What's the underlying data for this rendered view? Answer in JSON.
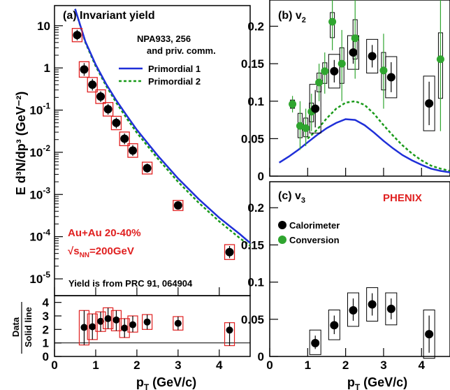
{
  "chart_data": [
    {
      "id": "yield",
      "type": "scatter",
      "title": "(a) Invariant yield",
      "ylabel": "E d³N/dp³ (GeV⁻²)",
      "xlabel": "",
      "log_y": true,
      "xlim": [
        0,
        4.75
      ],
      "ylim": [
        4e-06,
        30
      ],
      "yticks": [
        {
          "value": 10,
          "base": "10",
          "exp": ""
        },
        {
          "value": 1,
          "base": "1",
          "exp": ""
        },
        {
          "value": 0.1,
          "base": "10",
          "exp": "-1"
        },
        {
          "value": 0.01,
          "base": "10",
          "exp": "-2"
        },
        {
          "value": 0.001,
          "base": "10",
          "exp": "-3"
        },
        {
          "value": 0.0001,
          "base": "10",
          "exp": "-4"
        },
        {
          "value": 1e-05,
          "base": "10",
          "exp": "-5"
        }
      ],
      "ref_text": "NPA933, 256",
      "ref_text2": "and priv. comm.",
      "system_text": "Au+Au 20-40%",
      "energy_text": "=200GeV",
      "energy_prefix": "√s",
      "energy_sub": "NN",
      "source_text": "Yield is from PRC 91, 064904",
      "legend": [
        {
          "name": "Primordial 1",
          "style": "solid",
          "color": "#1f2fd8"
        },
        {
          "name": "Primordial 2",
          "style": "dashed",
          "color": "#1a9a1a"
        }
      ],
      "points": [
        {
          "x": 0.55,
          "y": 6.0,
          "lo": 4.5,
          "hi": 8.0
        },
        {
          "x": 0.72,
          "y": 0.92,
          "lo": 0.65,
          "hi": 1.3
        },
        {
          "x": 0.92,
          "y": 0.4,
          "lo": 0.29,
          "hi": 0.55
        },
        {
          "x": 1.12,
          "y": 0.21,
          "lo": 0.155,
          "hi": 0.28
        },
        {
          "x": 1.3,
          "y": 0.105,
          "lo": 0.078,
          "hi": 0.14
        },
        {
          "x": 1.5,
          "y": 0.05,
          "lo": 0.037,
          "hi": 0.066
        },
        {
          "x": 1.7,
          "y": 0.021,
          "lo": 0.0155,
          "hi": 0.028
        },
        {
          "x": 1.9,
          "y": 0.011,
          "lo": 0.0082,
          "hi": 0.0148
        },
        {
          "x": 2.25,
          "y": 0.0042,
          "lo": 0.0033,
          "hi": 0.0054
        },
        {
          "x": 3.0,
          "y": 0.00055,
          "lo": 0.00045,
          "hi": 0.00067
        },
        {
          "x": 4.25,
          "y": 4.3e-05,
          "lo": 3.1e-05,
          "hi": 6e-05
        }
      ],
      "curve1": [
        [
          0.5,
          25
        ],
        [
          0.75,
          4.2
        ],
        [
          1.0,
          1.2
        ],
        [
          1.25,
          0.42
        ],
        [
          1.5,
          0.17
        ],
        [
          1.75,
          0.075
        ],
        [
          2.0,
          0.034
        ],
        [
          2.5,
          0.0085
        ],
        [
          3.0,
          0.0024
        ],
        [
          3.5,
          0.00078
        ],
        [
          4.0,
          0.00028
        ],
        [
          4.5,
          0.000115
        ],
        [
          4.75,
          7.07e-05
        ]
      ],
      "curve2": [
        [
          0.5,
          25
        ],
        [
          0.75,
          4.0
        ],
        [
          1.0,
          1.1
        ],
        [
          1.25,
          0.38
        ],
        [
          1.5,
          0.15
        ],
        [
          1.75,
          0.064
        ],
        [
          2.0,
          0.029
        ],
        [
          2.5,
          0.0072
        ],
        [
          3.0,
          0.002
        ],
        [
          3.5,
          0.00064
        ],
        [
          4.0,
          0.00023
        ],
        [
          4.5,
          9.2e-05
        ],
        [
          4.75,
          6.12e-05
        ]
      ]
    },
    {
      "id": "ratio",
      "type": "scatter",
      "ylabel": "Data / Solid line",
      "ylabel_top": "Data",
      "ylabel_bottom": "Solid line",
      "xlabel": "p_T (GeV/c)",
      "xlabel_main": "p",
      "xlabel_sub": "T",
      "xlabel_unit": " (GeV/c)",
      "xlim": [
        0,
        4.75
      ],
      "ylim": [
        0,
        4.5
      ],
      "yticks": [
        "0",
        "1",
        "2",
        "3",
        "4"
      ],
      "xticks": [
        "0",
        "1",
        "2",
        "3",
        "4"
      ],
      "reference_line": 1,
      "points": [
        {
          "x": 0.72,
          "y": 2.15,
          "lo": 0.85,
          "hi": 3.4
        },
        {
          "x": 0.92,
          "y": 2.2,
          "lo": 1.25,
          "hi": 3.15
        },
        {
          "x": 1.12,
          "y": 2.6,
          "lo": 1.85,
          "hi": 3.3
        },
        {
          "x": 1.3,
          "y": 2.8,
          "lo": 2.05,
          "hi": 3.6
        },
        {
          "x": 1.5,
          "y": 2.7,
          "lo": 1.9,
          "hi": 3.4
        },
        {
          "x": 1.7,
          "y": 2.1,
          "lo": 1.4,
          "hi": 2.8
        },
        {
          "x": 1.9,
          "y": 2.35,
          "lo": 1.8,
          "hi": 3.0
        },
        {
          "x": 2.25,
          "y": 2.55,
          "lo": 2.0,
          "hi": 3.1
        },
        {
          "x": 3.0,
          "y": 2.45,
          "lo": 1.95,
          "hi": 2.95
        },
        {
          "x": 4.25,
          "y": 1.95,
          "lo": 0.8,
          "hi": 2.5
        }
      ]
    },
    {
      "id": "v2",
      "type": "scatter",
      "title_main": "(b) v",
      "title_sub": "2",
      "xlim": [
        0,
        4.75
      ],
      "ylim": [
        0,
        0.235
      ],
      "yticks": [
        "0",
        "0.05",
        "0.1",
        "0.15",
        "0.2"
      ],
      "calorimeter": [
        {
          "x": 1.2,
          "y": 0.09,
          "lo": 0.065,
          "hi": 0.115
        },
        {
          "x": 1.7,
          "y": 0.14,
          "lo": 0.125,
          "hi": 0.155
        },
        {
          "x": 2.2,
          "y": 0.165,
          "lo": 0.15,
          "hi": 0.18
        },
        {
          "x": 2.7,
          "y": 0.16,
          "lo": 0.145,
          "hi": 0.175
        },
        {
          "x": 3.2,
          "y": 0.132,
          "lo": 0.112,
          "hi": 0.152
        },
        {
          "x": 4.2,
          "y": 0.097,
          "lo": 0.068,
          "hi": 0.126
        }
      ],
      "conversion": [
        {
          "x": 0.6,
          "y": 0.096,
          "lo": 0.085,
          "hi": 0.107
        },
        {
          "x": 0.8,
          "y": 0.067,
          "lo": 0.035,
          "hi": 0.1
        },
        {
          "x": 0.95,
          "y": 0.064,
          "lo": 0.04,
          "hi": 0.09
        },
        {
          "x": 1.1,
          "y": 0.086,
          "lo": 0.06,
          "hi": 0.11
        },
        {
          "x": 1.3,
          "y": 0.125,
          "lo": 0.1,
          "hi": 0.15
        },
        {
          "x": 1.45,
          "y": 0.14,
          "lo": 0.11,
          "hi": 0.165
        },
        {
          "x": 1.65,
          "y": 0.206,
          "lo": 0.168,
          "hi": 0.235
        },
        {
          "x": 1.9,
          "y": 0.15,
          "lo": 0.1,
          "hi": 0.195
        },
        {
          "x": 2.25,
          "y": 0.184,
          "lo": 0.13,
          "hi": 0.235
        },
        {
          "x": 3.0,
          "y": 0.141,
          "lo": 0.09,
          "hi": 0.19
        },
        {
          "x": 4.5,
          "y": 0.156,
          "lo": 0.06,
          "hi": 0.235
        }
      ],
      "curve1": [
        [
          0.25,
          0.018
        ],
        [
          0.5,
          0.026
        ],
        [
          0.75,
          0.035
        ],
        [
          1.0,
          0.045
        ],
        [
          1.25,
          0.055
        ],
        [
          1.5,
          0.064
        ],
        [
          1.75,
          0.071
        ],
        [
          2.0,
          0.076
        ],
        [
          2.25,
          0.075
        ],
        [
          2.5,
          0.068
        ],
        [
          2.75,
          0.058
        ],
        [
          3.0,
          0.047
        ],
        [
          3.25,
          0.037
        ],
        [
          3.5,
          0.028
        ],
        [
          3.75,
          0.021
        ],
        [
          4.0,
          0.015
        ],
        [
          4.25,
          0.01
        ],
        [
          4.5,
          0.007
        ],
        [
          4.75,
          0.005
        ]
      ],
      "curve2": [
        [
          1.0,
          0.05
        ],
        [
          1.25,
          0.062
        ],
        [
          1.5,
          0.077
        ],
        [
          1.75,
          0.09
        ],
        [
          2.0,
          0.098
        ],
        [
          2.25,
          0.1
        ],
        [
          2.5,
          0.095
        ],
        [
          2.75,
          0.083
        ],
        [
          3.0,
          0.068
        ],
        [
          3.25,
          0.054
        ],
        [
          3.5,
          0.041
        ],
        [
          3.75,
          0.03
        ],
        [
          4.0,
          0.021
        ],
        [
          4.25,
          0.014
        ],
        [
          4.5,
          0.01
        ],
        [
          4.75,
          0.007
        ]
      ]
    },
    {
      "id": "v3",
      "type": "scatter",
      "title_main": "(c) v",
      "title_sub": "3",
      "xlabel": "p_T (GeV/c)",
      "xlabel_main": "p",
      "xlabel_sub": "T",
      "xlabel_unit": " (GeV/c)",
      "xlim": [
        0,
        4.75
      ],
      "ylim": [
        0,
        0.235
      ],
      "yticks": [
        "0",
        "0.05",
        "0.1",
        "0.15",
        "0.2"
      ],
      "xticks": [
        "0",
        "1",
        "2",
        "3",
        "4"
      ],
      "experiment": "PHENIX",
      "legend": [
        {
          "name": "Calorimeter",
          "color": "#000000"
        },
        {
          "name": "Conversion",
          "color": "#2fa52f"
        }
      ],
      "calorimeter": [
        {
          "x": 1.2,
          "y": 0.018,
          "lo": 0.01,
          "hi": 0.028
        },
        {
          "x": 1.7,
          "y": 0.042,
          "lo": 0.03,
          "hi": 0.055
        },
        {
          "x": 2.2,
          "y": 0.062,
          "lo": 0.048,
          "hi": 0.078
        },
        {
          "x": 2.7,
          "y": 0.07,
          "lo": 0.055,
          "hi": 0.085
        },
        {
          "x": 3.2,
          "y": 0.064,
          "lo": 0.05,
          "hi": 0.078
        },
        {
          "x": 4.2,
          "y": 0.03,
          "lo": 0.005,
          "hi": 0.055
        }
      ]
    }
  ]
}
